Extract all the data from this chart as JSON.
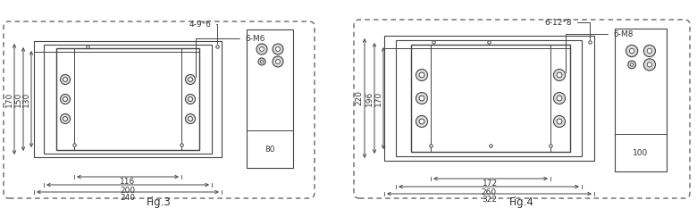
{
  "fig3": {
    "label": "Fig.3",
    "hole_label_top": "4-9*6",
    "terminal_label": "6-M6",
    "dim_left": [
      "170",
      "150",
      "130"
    ],
    "dim_bottom": [
      "116",
      "200",
      "240"
    ],
    "dim_right": "80"
  },
  "fig4": {
    "label": "Fig.4",
    "hole_label_top": "6-12*8",
    "terminal_label": "6-M8",
    "dim_left": [
      "220",
      "196",
      "170"
    ],
    "dim_bottom": [
      "172",
      "260",
      "322"
    ],
    "dim_right": "100"
  },
  "bg_color": "#ffffff",
  "line_color": "#444444",
  "text_color": "#333333",
  "dash_color": "#666666",
  "font_size": 6.5,
  "fig_label_size": 8.5
}
